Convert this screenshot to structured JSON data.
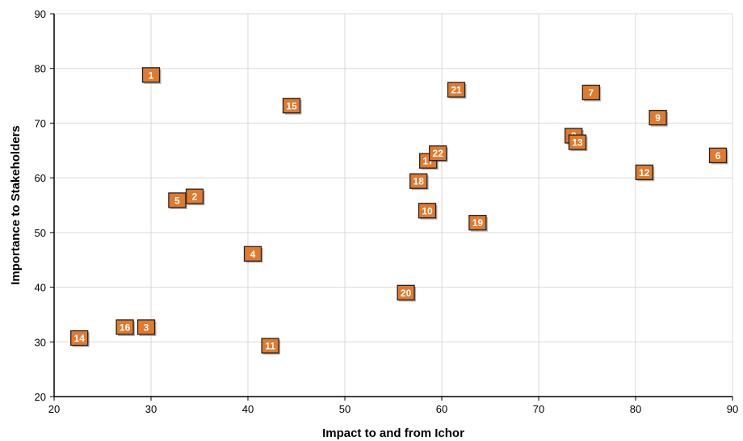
{
  "chart_data": {
    "type": "scatter",
    "title": "",
    "xlabel": "Impact to and from Ichor",
    "ylabel": "Importance to Stakeholders",
    "xlim": [
      20,
      90
    ],
    "ylim": [
      20,
      90
    ],
    "xticks": [
      20,
      30,
      40,
      50,
      60,
      70,
      80,
      90
    ],
    "yticks": [
      20,
      30,
      40,
      50,
      60,
      70,
      80,
      90
    ],
    "grid": true,
    "legend": "none",
    "marker_color": "#e07a2e",
    "marker_border": "#222222",
    "label_color": "#ffffff",
    "points": [
      {
        "label": "1",
        "x": 30.0,
        "y": 78.8
      },
      {
        "label": "2",
        "x": 34.5,
        "y": 56.6
      },
      {
        "label": "3",
        "x": 29.5,
        "y": 32.7
      },
      {
        "label": "4",
        "x": 40.5,
        "y": 46.1
      },
      {
        "label": "5",
        "x": 32.7,
        "y": 55.9
      },
      {
        "label": "6",
        "x": 88.5,
        "y": 64.1
      },
      {
        "label": "7",
        "x": 75.4,
        "y": 75.6
      },
      {
        "label": "8",
        "x": 73.6,
        "y": 67.7
      },
      {
        "label": "9",
        "x": 82.3,
        "y": 71.0
      },
      {
        "label": "10",
        "x": 58.5,
        "y": 54.0
      },
      {
        "label": "11",
        "x": 42.3,
        "y": 29.3
      },
      {
        "label": "12",
        "x": 80.9,
        "y": 61.0
      },
      {
        "label": "13",
        "x": 74.0,
        "y": 66.5
      },
      {
        "label": "14",
        "x": 22.6,
        "y": 30.7
      },
      {
        "label": "15",
        "x": 44.5,
        "y": 73.2
      },
      {
        "label": "16",
        "x": 27.3,
        "y": 32.7
      },
      {
        "label": "17",
        "x": 58.6,
        "y": 63.1
      },
      {
        "label": "18",
        "x": 57.6,
        "y": 59.4
      },
      {
        "label": "19",
        "x": 63.7,
        "y": 51.8
      },
      {
        "label": "20",
        "x": 56.3,
        "y": 39.0
      },
      {
        "label": "21",
        "x": 61.5,
        "y": 76.1
      },
      {
        "label": "22",
        "x": 59.6,
        "y": 64.5
      }
    ]
  }
}
